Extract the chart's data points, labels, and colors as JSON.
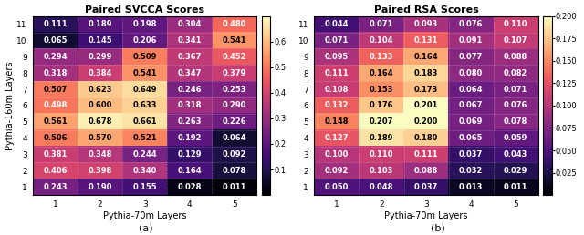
{
  "title_a": "Paired SVCCA Scores",
  "title_b": "Paired RSA Scores",
  "xlabel": "Pythia-70m Layers",
  "ylabel": "Pythia-160m Layers",
  "caption_a": "(a)",
  "caption_b": "(b)",
  "xtick_labels": [
    "1",
    "2",
    "3",
    "4",
    "5"
  ],
  "ytick_labels": [
    "11",
    "10",
    "9",
    "8",
    "7",
    "6",
    "5",
    "4",
    "3",
    "2",
    "1"
  ],
  "svcca_data": [
    [
      0.111,
      0.189,
      0.198,
      0.304,
      0.48
    ],
    [
      0.065,
      0.145,
      0.206,
      0.341,
      0.541
    ],
    [
      0.294,
      0.299,
      0.509,
      0.367,
      0.452
    ],
    [
      0.318,
      0.384,
      0.541,
      0.347,
      0.379
    ],
    [
      0.507,
      0.623,
      0.649,
      0.246,
      0.253
    ],
    [
      0.498,
      0.6,
      0.633,
      0.318,
      0.29
    ],
    [
      0.561,
      0.678,
      0.661,
      0.263,
      0.226
    ],
    [
      0.506,
      0.57,
      0.521,
      0.192,
      0.064
    ],
    [
      0.381,
      0.348,
      0.244,
      0.129,
      0.092
    ],
    [
      0.406,
      0.398,
      0.34,
      0.164,
      0.078
    ],
    [
      0.243,
      0.19,
      0.155,
      0.028,
      0.011
    ]
  ],
  "rsa_data": [
    [
      0.044,
      0.071,
      0.093,
      0.076,
      0.11
    ],
    [
      0.071,
      0.104,
      0.131,
      0.091,
      0.107
    ],
    [
      0.095,
      0.133,
      0.164,
      0.077,
      0.088
    ],
    [
      0.111,
      0.164,
      0.183,
      0.08,
      0.082
    ],
    [
      0.108,
      0.153,
      0.173,
      0.064,
      0.071
    ],
    [
      0.132,
      0.176,
      0.201,
      0.067,
      0.076
    ],
    [
      0.148,
      0.207,
      0.2,
      0.069,
      0.078
    ],
    [
      0.127,
      0.189,
      0.18,
      0.065,
      0.059
    ],
    [
      0.1,
      0.11,
      0.111,
      0.037,
      0.043
    ],
    [
      0.092,
      0.103,
      0.088,
      0.032,
      0.029
    ],
    [
      0.05,
      0.048,
      0.037,
      0.013,
      0.011
    ]
  ],
  "svcca_vmin": 0.0,
  "svcca_vmax": 0.7,
  "rsa_vmin": 0.0,
  "rsa_vmax": 0.2,
  "svcca_cbar_ticks": [
    0.1,
    0.2,
    0.3,
    0.4,
    0.5,
    0.6
  ],
  "rsa_cbar_ticks": [
    0.025,
    0.05,
    0.075,
    0.1,
    0.125,
    0.15,
    0.175,
    0.2
  ],
  "title_fontsize": 8,
  "label_fontsize": 7,
  "tick_fontsize": 6.5,
  "annot_fontsize": 6,
  "colorbar_tick_fontsize": 6,
  "figure_width": 6.4,
  "figure_height": 2.58
}
